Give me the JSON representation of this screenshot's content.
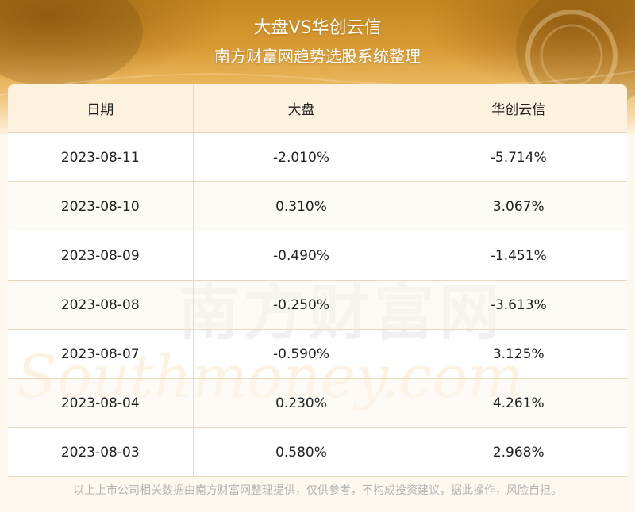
{
  "header": {
    "title": "大盘VS华创云信",
    "subtitle": "南方财富网趋势选股系统整理"
  },
  "table": {
    "columns": [
      "日期",
      "大盘",
      "华创云信"
    ],
    "rows": [
      [
        "2023-08-11",
        "-2.010%",
        "-5.714%"
      ],
      [
        "2023-08-10",
        "0.310%",
        "3.067%"
      ],
      [
        "2023-08-09",
        "-0.490%",
        "-1.451%"
      ],
      [
        "2023-08-08",
        "-0.250%",
        "-3.613%"
      ],
      [
        "2023-08-07",
        "-0.590%",
        "3.125%"
      ],
      [
        "2023-08-04",
        "0.230%",
        "4.261%"
      ],
      [
        "2023-08-03",
        "0.580%",
        "2.968%"
      ]
    ]
  },
  "watermark": {
    "cn": "南方财富网",
    "en": "Southmoney.com"
  },
  "footer": {
    "disclaimer": "以上上市公司相关数据由南方财富网整理提供，仅供参考，不构成投资建议，据此操作，风险自担。"
  },
  "colors": {
    "banner_gold": "#d99a33",
    "header_row_bg": "#fdf1df",
    "border": "#ead9bf",
    "text": "#222222",
    "footer_text": "#b3b3b3"
  }
}
